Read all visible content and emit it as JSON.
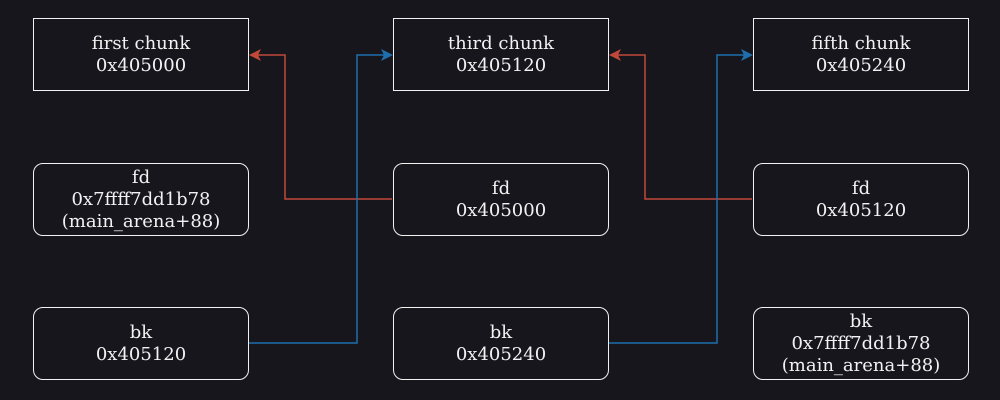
{
  "colors": {
    "background": "#18161d",
    "box_border": "#f2f2f2",
    "text": "#f2f2f2",
    "fd_arrow": "#c0493a",
    "bk_arrow": "#1f6fae"
  },
  "chunks": [
    {
      "title": "first chunk",
      "address": "0x405000"
    },
    {
      "title": "third chunk",
      "address": "0x405120"
    },
    {
      "title": "fifth chunk",
      "address": "0x405240"
    }
  ],
  "fd_fields": [
    {
      "label": "fd",
      "value": "0x7ffff7dd1b78",
      "note": "(main_arena+88)"
    },
    {
      "label": "fd",
      "value": "0x405000"
    },
    {
      "label": "fd",
      "value": "0x405120"
    }
  ],
  "bk_fields": [
    {
      "label": "bk",
      "value": "0x405120"
    },
    {
      "label": "bk",
      "value": "0x405240"
    },
    {
      "label": "bk",
      "value": "0x7ffff7dd1b78",
      "note": "(main_arena+88)"
    }
  ]
}
